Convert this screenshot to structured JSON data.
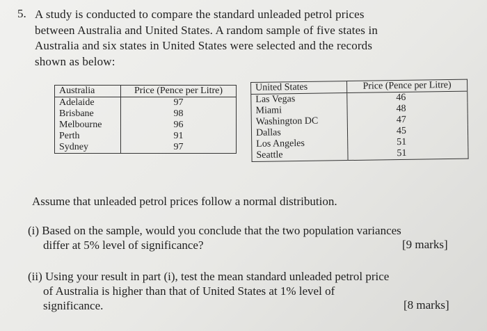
{
  "question": {
    "number": "5.",
    "intro_lines": [
      "A study is conducted to compare the standard unleaded petrol prices",
      "between Australia and United States. A random sample of five states in",
      "Australia and six states in United States were selected and the records",
      "shown as below:"
    ]
  },
  "australia_table": {
    "headers": [
      "Australia",
      "Price (Pence per Litre)"
    ],
    "rows": [
      [
        "Adelaide",
        "97"
      ],
      [
        "Brisbane",
        "98"
      ],
      [
        "Melbourne",
        "96"
      ],
      [
        "Perth",
        "91"
      ],
      [
        "Sydney",
        "97"
      ]
    ]
  },
  "us_table": {
    "headers": [
      "United States",
      "Price (Pence per Litre)"
    ],
    "rows": [
      [
        "Las Vegas",
        "46"
      ],
      [
        "Miami",
        "48"
      ],
      [
        "Washington DC",
        "47"
      ],
      [
        "Dallas",
        "45"
      ],
      [
        "Los Angeles",
        "51"
      ],
      [
        "Seattle",
        "51"
      ]
    ]
  },
  "assumption": "Assume that unleaded petrol prices follow a normal distribution.",
  "part_i": {
    "label": "(i)",
    "lines": [
      "Based on the sample, would you conclude that the two population variances",
      "differ at 5% level of significance?"
    ],
    "marks": "[9 marks]"
  },
  "part_ii": {
    "label": "(ii)",
    "lines": [
      "Using your result in part (i), test the mean standard unleaded petrol price",
      "of Australia is higher than that of United States at 1% level of",
      "significance."
    ],
    "marks": "[8 marks]"
  }
}
